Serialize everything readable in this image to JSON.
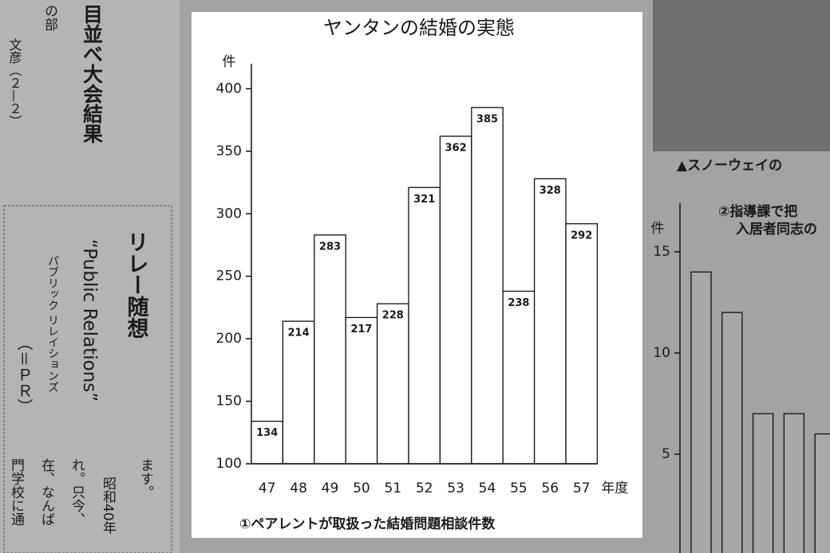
{
  "chart_data": [
    {
      "type": "bar",
      "title": "ヤンタンの結婚の実態",
      "y_label": "件",
      "x_label": "年度",
      "caption": "①ペアレントが取扱った結婚問題相談件数",
      "categories": [
        "47",
        "48",
        "49",
        "50",
        "51",
        "52",
        "53",
        "54",
        "55",
        "56",
        "57"
      ],
      "values": [
        134,
        214,
        283,
        217,
        228,
        321,
        362,
        385,
        238,
        328,
        292
      ],
      "color": "#ffffff",
      "ylim": [
        100,
        420
      ],
      "yticks": [
        100,
        150,
        200,
        250,
        300,
        350,
        400
      ],
      "value_labels_shown": true
    },
    {
      "type": "bar",
      "title": "②指導課で把",
      "subtitle": "入居者同志の",
      "y_label": "件",
      "categories": [
        null,
        null,
        null,
        null,
        null
      ],
      "values": [
        14,
        12,
        7,
        7,
        6
      ],
      "color": "#a9a9a9",
      "ylim": [
        0,
        17.4
      ],
      "yticks": [
        5,
        10,
        15
      ],
      "value_labels_shown": false
    }
  ],
  "page_text": [
    "目並べ大会結果",
    "の部",
    "文彦（２—２）",
    "リレー随想",
    "“Public Relations”",
    "パブリック リレイションズ",
    "（＝ＰＲ）",
    "ます。",
    "昭和40年",
    "れ。只今、",
    "在、なんば",
    "門学校に通",
    "▲スノーウェイの"
  ]
}
